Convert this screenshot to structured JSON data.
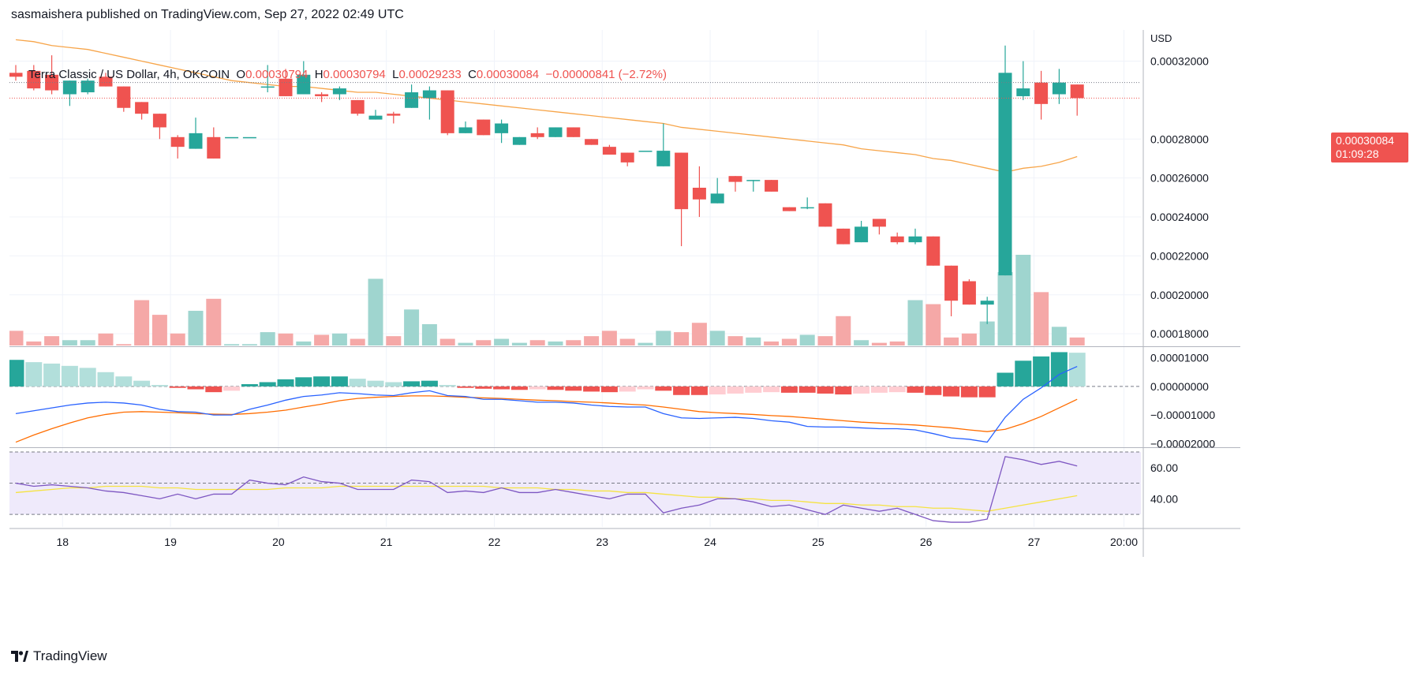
{
  "header": {
    "published": "sasmaishera published on TradingView.com, Sep 27, 2022 02:49 UTC"
  },
  "legend": {
    "symbol": "Terra Classic / US Dollar, 4h, OKCOIN",
    "open_key": "O",
    "open": "0.00030794",
    "high_key": "H",
    "high": "0.00030794",
    "low_key": "L",
    "low": "0.00029233",
    "close_key": "C",
    "close": "0.00030084",
    "change": "−0.00000841 (−2.72%)"
  },
  "price_axis": {
    "currency": "USD",
    "ticks": [
      "0.00032000",
      "0.00028000",
      "0.00026000",
      "0.00024000",
      "0.00022000",
      "0.00020000",
      "0.00018000"
    ],
    "last_price": "0.00030084",
    "countdown": "01:09:28"
  },
  "macd_axis": {
    "ticks": [
      "0.00001000",
      "0.00000000",
      "−0.00001000",
      "−0.00002000"
    ]
  },
  "rsi_axis": {
    "ticks": [
      "60.00",
      "40.00"
    ]
  },
  "time_axis": {
    "labels": [
      "18",
      "19",
      "20",
      "21",
      "22",
      "23",
      "24",
      "25",
      "26",
      "27",
      "20:00"
    ]
  },
  "footer": {
    "brand": "TradingView"
  },
  "colors": {
    "up": "#26a69a",
    "down": "#ef5350",
    "vol_up": "#9fd5cf",
    "vol_down": "#f5a8a7",
    "ma": "#f7a54a",
    "macd": "#2962ff",
    "signal": "#ff6d00",
    "rsi": "#7e57c2",
    "rsi_ma": "#f5e342",
    "rsi_band": "#efeafb"
  },
  "chart_data": {
    "type": "candlestick",
    "interval": "4h",
    "candles": [
      {
        "o": 0.000314,
        "h": 0.000318,
        "l": 0.00031,
        "c": 0.000312
      },
      {
        "o": 0.000315,
        "h": 0.000318,
        "l": 0.000305,
        "c": 0.000306
      },
      {
        "o": 0.000313,
        "h": 0.000323,
        "l": 0.000303,
        "c": 0.000305
      },
      {
        "o": 0.000303,
        "h": 0.00031,
        "l": 0.000297,
        "c": 0.00031
      },
      {
        "o": 0.000304,
        "h": 0.000311,
        "l": 0.000303,
        "c": 0.00031
      },
      {
        "o": 0.000312,
        "h": 0.000314,
        "l": 0.000307,
        "c": 0.000307
      },
      {
        "o": 0.000307,
        "h": 0.000307,
        "l": 0.000294,
        "c": 0.000296
      },
      {
        "o": 0.000299,
        "h": 0.000299,
        "l": 0.00029,
        "c": 0.000293
      },
      {
        "o": 0.000293,
        "h": 0.000293,
        "l": 0.00028,
        "c": 0.000286
      },
      {
        "o": 0.000281,
        "h": 0.000282,
        "l": 0.00027,
        "c": 0.000276
      },
      {
        "o": 0.000275,
        "h": 0.000291,
        "l": 0.000275,
        "c": 0.000283
      },
      {
        "o": 0.000281,
        "h": 0.000286,
        "l": 0.00027,
        "c": 0.00027
      },
      {
        "o": 0.000281,
        "h": 0.000281,
        "l": 0.000281,
        "c": 0.000281
      },
      {
        "o": 0.000281,
        "h": 0.000281,
        "l": 0.000281,
        "c": 0.000281
      },
      {
        "o": 0.000307,
        "h": 0.000318,
        "l": 0.000304,
        "c": 0.000307
      },
      {
        "o": 0.000311,
        "h": 0.000316,
        "l": 0.000302,
        "c": 0.000302
      },
      {
        "o": 0.000303,
        "h": 0.00032,
        "l": 0.000303,
        "c": 0.000313
      },
      {
        "o": 0.000303,
        "h": 0.000304,
        "l": 0.000299,
        "c": 0.000302
      },
      {
        "o": 0.000303,
        "h": 0.000307,
        "l": 0.0003,
        "c": 0.000306
      },
      {
        "o": 0.0003,
        "h": 0.0003,
        "l": 0.000292,
        "c": 0.000293
      },
      {
        "o": 0.00029,
        "h": 0.000295,
        "l": 0.00029,
        "c": 0.000292
      },
      {
        "o": 0.000293,
        "h": 0.000294,
        "l": 0.000288,
        "c": 0.000292
      },
      {
        "o": 0.000296,
        "h": 0.000308,
        "l": 0.000296,
        "c": 0.000304
      },
      {
        "o": 0.000301,
        "h": 0.000307,
        "l": 0.00029,
        "c": 0.000305
      },
      {
        "o": 0.000305,
        "h": 0.000305,
        "l": 0.000282,
        "c": 0.000283
      },
      {
        "o": 0.000283,
        "h": 0.000289,
        "l": 0.000283,
        "c": 0.000286
      },
      {
        "o": 0.00029,
        "h": 0.00029,
        "l": 0.000282,
        "c": 0.000282
      },
      {
        "o": 0.000283,
        "h": 0.00029,
        "l": 0.000278,
        "c": 0.000288
      },
      {
        "o": 0.000277,
        "h": 0.000281,
        "l": 0.000277,
        "c": 0.000281
      },
      {
        "o": 0.000283,
        "h": 0.000286,
        "l": 0.00028,
        "c": 0.000281
      },
      {
        "o": 0.000281,
        "h": 0.000286,
        "l": 0.000281,
        "c": 0.000286
      },
      {
        "o": 0.000286,
        "h": 0.000286,
        "l": 0.000281,
        "c": 0.000281
      },
      {
        "o": 0.00028,
        "h": 0.00028,
        "l": 0.000277,
        "c": 0.000277
      },
      {
        "o": 0.000276,
        "h": 0.000277,
        "l": 0.000272,
        "c": 0.000272
      },
      {
        "o": 0.000273,
        "h": 0.000273,
        "l": 0.000266,
        "c": 0.000268
      },
      {
        "o": 0.000274,
        "h": 0.000274,
        "l": 0.000274,
        "c": 0.000274
      },
      {
        "o": 0.000266,
        "h": 0.000288,
        "l": 0.000266,
        "c": 0.000274
      },
      {
        "o": 0.000273,
        "h": 0.000273,
        "l": 0.000225,
        "c": 0.000244
      },
      {
        "o": 0.000255,
        "h": 0.000266,
        "l": 0.00024,
        "c": 0.000249
      },
      {
        "o": 0.000247,
        "h": 0.00026,
        "l": 0.000247,
        "c": 0.000252
      },
      {
        "o": 0.000261,
        "h": 0.000261,
        "l": 0.000253,
        "c": 0.000258
      },
      {
        "o": 0.000259,
        "h": 0.000259,
        "l": 0.000253,
        "c": 0.000259
      },
      {
        "o": 0.000259,
        "h": 0.000259,
        "l": 0.000253,
        "c": 0.000253
      },
      {
        "o": 0.000245,
        "h": 0.000245,
        "l": 0.000243,
        "c": 0.000243
      },
      {
        "o": 0.000245,
        "h": 0.00025,
        "l": 0.000244,
        "c": 0.000245
      },
      {
        "o": 0.000247,
        "h": 0.000247,
        "l": 0.000235,
        "c": 0.000235
      },
      {
        "o": 0.000234,
        "h": 0.000234,
        "l": 0.000226,
        "c": 0.000226
      },
      {
        "o": 0.000227,
        "h": 0.000238,
        "l": 0.000227,
        "c": 0.000235
      },
      {
        "o": 0.000239,
        "h": 0.000239,
        "l": 0.000231,
        "c": 0.000235
      },
      {
        "o": 0.00023,
        "h": 0.000232,
        "l": 0.000226,
        "c": 0.000227
      },
      {
        "o": 0.000227,
        "h": 0.000234,
        "l": 0.000226,
        "c": 0.00023
      },
      {
        "o": 0.00023,
        "h": 0.00023,
        "l": 0.000215,
        "c": 0.000215
      },
      {
        "o": 0.000215,
        "h": 0.000215,
        "l": 0.000189,
        "c": 0.000197
      },
      {
        "o": 0.000207,
        "h": 0.000208,
        "l": 0.000195,
        "c": 0.000195
      },
      {
        "o": 0.000195,
        "h": 0.000199,
        "l": 0.000185,
        "c": 0.000197
      },
      {
        "o": 0.00021,
        "h": 0.000328,
        "l": 0.00021,
        "c": 0.000314
      },
      {
        "o": 0.000302,
        "h": 0.00032,
        "l": 0.0003,
        "c": 0.000306
      },
      {
        "o": 0.000309,
        "h": 0.000315,
        "l": 0.00029,
        "c": 0.000298
      },
      {
        "o": 0.000303,
        "h": 0.000316,
        "l": 0.000298,
        "c": 0.000309
      },
      {
        "o": 0.000308,
        "h": 0.000308,
        "l": 0.000292,
        "c": 0.000301
      }
    ],
    "volume": [
      11,
      3,
      7,
      4,
      4,
      9,
      1,
      34,
      23,
      9,
      26,
      35,
      1,
      1,
      10,
      9,
      3,
      8,
      9,
      5,
      50,
      7,
      27,
      16,
      5,
      2,
      4,
      5,
      2,
      4,
      3,
      4,
      7,
      11,
      5,
      2,
      11,
      10,
      17,
      11,
      7,
      6,
      3,
      5,
      8,
      7,
      22,
      4,
      2,
      3,
      34,
      31,
      6,
      9,
      18,
      55,
      68,
      40,
      14,
      6
    ],
    "moving_average": [
      0.000331,
      0.00033,
      0.000328,
      0.000327,
      0.000326,
      0.000324,
      0.000322,
      0.00032,
      0.000318,
      0.000316,
      0.000314,
      0.000312,
      0.00031,
      0.000309,
      0.000308,
      0.000307,
      0.000307,
      0.000306,
      0.000305,
      0.000304,
      0.000304,
      0.000303,
      0.000302,
      0.000301,
      0.0003,
      0.000299,
      0.000298,
      0.000297,
      0.000296,
      0.000295,
      0.000294,
      0.000293,
      0.000292,
      0.000291,
      0.00029,
      0.000289,
      0.000288,
      0.000286,
      0.000285,
      0.000284,
      0.000283,
      0.000282,
      0.000281,
      0.00028,
      0.000279,
      0.000278,
      0.000277,
      0.000275,
      0.000274,
      0.000273,
      0.000272,
      0.00027,
      0.000269,
      0.000267,
      0.000265,
      0.000263,
      0.000265,
      0.000266,
      0.000268,
      0.000271
    ],
    "macd_histogram": [
      9.3e-06,
      8.5e-06,
      8e-06,
      7.2e-06,
      6.5e-06,
      5e-06,
      3.5e-06,
      2e-06,
      5e-07,
      -5e-07,
      -1e-06,
      -2e-06,
      -1.5e-06,
      8e-07,
      1.5e-06,
      2.5e-06,
      3.2e-06,
      3.5e-06,
      3.5e-06,
      2.7e-06,
      2e-06,
      1.5e-06,
      1.8e-06,
      2e-06,
      5e-07,
      -5e-07,
      -8e-07,
      -1e-06,
      -1.2e-06,
      -1e-06,
      -1.2e-06,
      -1.5e-06,
      -1.8e-06,
      -2e-06,
      -1.8e-06,
      -1e-06,
      -1.5e-06,
      -3e-06,
      -3e-06,
      -2.8e-06,
      -2.5e-06,
      -2.2e-06,
      -2e-06,
      -2.2e-06,
      -2.2e-06,
      -2.5e-06,
      -2.8e-06,
      -2.5e-06,
      -2.2e-06,
      -2e-06,
      -2.2e-06,
      -3e-06,
      -3.5e-06,
      -3.8e-06,
      -3.8e-06,
      4.8e-06,
      9e-06,
      1.05e-05,
      1.2e-05,
      1.18e-05
    ],
    "macd_line": [
      -9.5e-06,
      -8.5e-06,
      -7.5e-06,
      -6.5e-06,
      -5.8e-06,
      -5.5e-06,
      -5.8e-06,
      -6.5e-06,
      -8e-06,
      -8.8e-06,
      -9e-06,
      -1e-05,
      -1e-05,
      -8e-06,
      -6.5e-06,
      -4.8e-06,
      -3.5e-06,
      -3e-06,
      -2.2e-06,
      -2.5e-06,
      -3e-06,
      -3.2e-06,
      -2.2e-06,
      -1.5e-06,
      -3.2e-06,
      -3.5e-06,
      -4.5e-06,
      -4.5e-06,
      -5e-06,
      -5.5e-06,
      -5.5e-06,
      -5.8e-06,
      -6.5e-06,
      -7e-06,
      -7.2e-06,
      -7.2e-06,
      -9.5e-06,
      -1.1e-05,
      -1.12e-05,
      -1.1e-05,
      -1.08e-05,
      -1.12e-05,
      -1.2e-05,
      -1.25e-05,
      -1.4e-05,
      -1.42e-05,
      -1.42e-05,
      -1.45e-05,
      -1.48e-05,
      -1.48e-05,
      -1.52e-05,
      -1.65e-05,
      -1.8e-05,
      -1.85e-05,
      -1.95e-05,
      -1.08e-05,
      -4.5e-06,
      -5e-07,
      4.2e-06,
      7e-06
    ],
    "signal_line": [
      -1.95e-05,
      -1.7e-05,
      -1.48e-05,
      -1.28e-05,
      -1.1e-05,
      -9.8e-06,
      -9e-06,
      -8.8e-06,
      -9e-06,
      -9.2e-06,
      -9.5e-06,
      -9.7e-06,
      -9.8e-06,
      -9.5e-06,
      -9e-06,
      -8.3e-06,
      -7.2e-06,
      -6.2e-06,
      -5e-06,
      -4.2e-06,
      -3.8e-06,
      -3.5e-06,
      -3.3e-06,
      -3.3e-06,
      -3.5e-06,
      -3.8e-06,
      -4e-06,
      -4.2e-06,
      -4.5e-06,
      -4.8e-06,
      -5e-06,
      -5.3e-06,
      -5.5e-06,
      -5.8e-06,
      -6.2e-06,
      -6.5e-06,
      -7.2e-06,
      -8e-06,
      -8.8e-06,
      -9.2e-06,
      -9.5e-06,
      -9.8e-06,
      -1.02e-05,
      -1.05e-05,
      -1.1e-05,
      -1.15e-05,
      -1.2e-05,
      -1.25e-05,
      -1.28e-05,
      -1.32e-05,
      -1.35e-05,
      -1.4e-05,
      -1.45e-05,
      -1.52e-05,
      -1.58e-05,
      -1.5e-05,
      -1.3e-05,
      -1.05e-05,
      -7.5e-06,
      -4.5e-06
    ],
    "rsi": [
      50,
      48,
      49,
      48,
      47,
      45,
      44,
      42,
      40,
      43,
      40,
      43,
      43,
      52,
      50,
      49,
      54,
      51,
      50,
      46,
      46,
      46,
      52,
      51,
      44,
      45,
      44,
      47,
      44,
      44,
      46,
      44,
      42,
      40,
      43,
      43,
      31,
      34,
      36,
      40,
      40,
      38,
      35,
      36,
      33,
      30,
      36,
      34,
      32,
      34,
      30,
      26,
      25,
      25,
      27,
      67,
      65,
      62,
      64,
      61
    ],
    "rsi_ma": [
      44,
      45,
      46,
      47,
      47,
      48,
      48,
      48,
      47,
      47,
      46,
      46,
      46,
      46,
      46,
      47,
      47,
      47,
      48,
      48,
      48,
      48,
      48,
      48,
      48,
      48,
      48,
      47,
      47,
      47,
      46,
      46,
      45,
      45,
      44,
      44,
      43,
      42,
      41,
      41,
      40,
      40,
      39,
      39,
      38,
      37,
      37,
      36,
      36,
      35,
      35,
      34,
      34,
      33,
      32,
      34,
      36,
      38,
      40,
      42
    ],
    "rsi_levels": [
      70,
      50,
      30
    ],
    "price_range": [
      0.000174,
      0.000336
    ],
    "macd_range": [
      -2.1e-05,
      1.35e-05
    ],
    "rsi_range": [
      22,
      72
    ]
  }
}
